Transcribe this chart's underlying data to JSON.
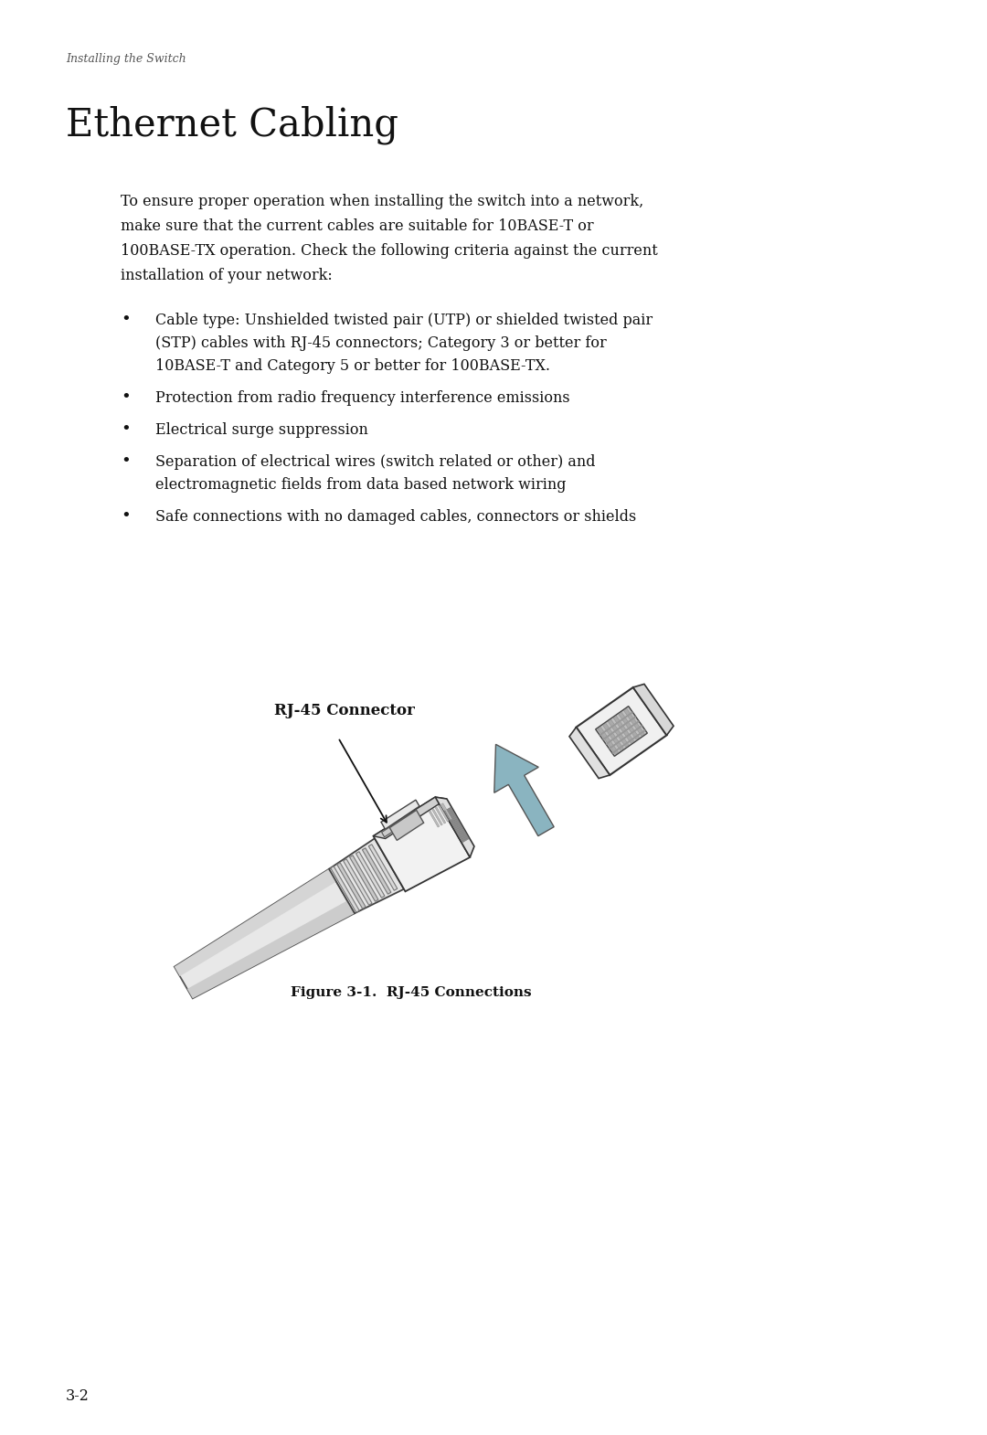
{
  "bg_color": "#ffffff",
  "header_text": "Installing the Switch",
  "title": "Ethernet Cabling",
  "paragraph": "To ensure proper operation when installing the switch into a network,\nmake sure that the current cables are suitable for 10BASE-T or\n100BASE-TX operation. Check the following criteria against the current\ninstallation of your network:",
  "bullets": [
    "Cable type: Unshielded twisted pair (UTP) or shielded twisted pair\n(STP) cables with RJ-45 connectors; Category 3 or better for\n10BASE-T and Category 5 or better for 100BASE-TX.",
    "Protection from radio frequency interference emissions",
    "Electrical surge suppression",
    "Separation of electrical wires (switch related or other) and\nelectromagnetic fields from data based network wiring",
    "Safe connections with no damaged cables, connectors or shields"
  ],
  "connector_label": "RJ-45 Connector",
  "figure_caption": "Figure 3-1.  RJ-45 Connections",
  "page_number": "3-2"
}
